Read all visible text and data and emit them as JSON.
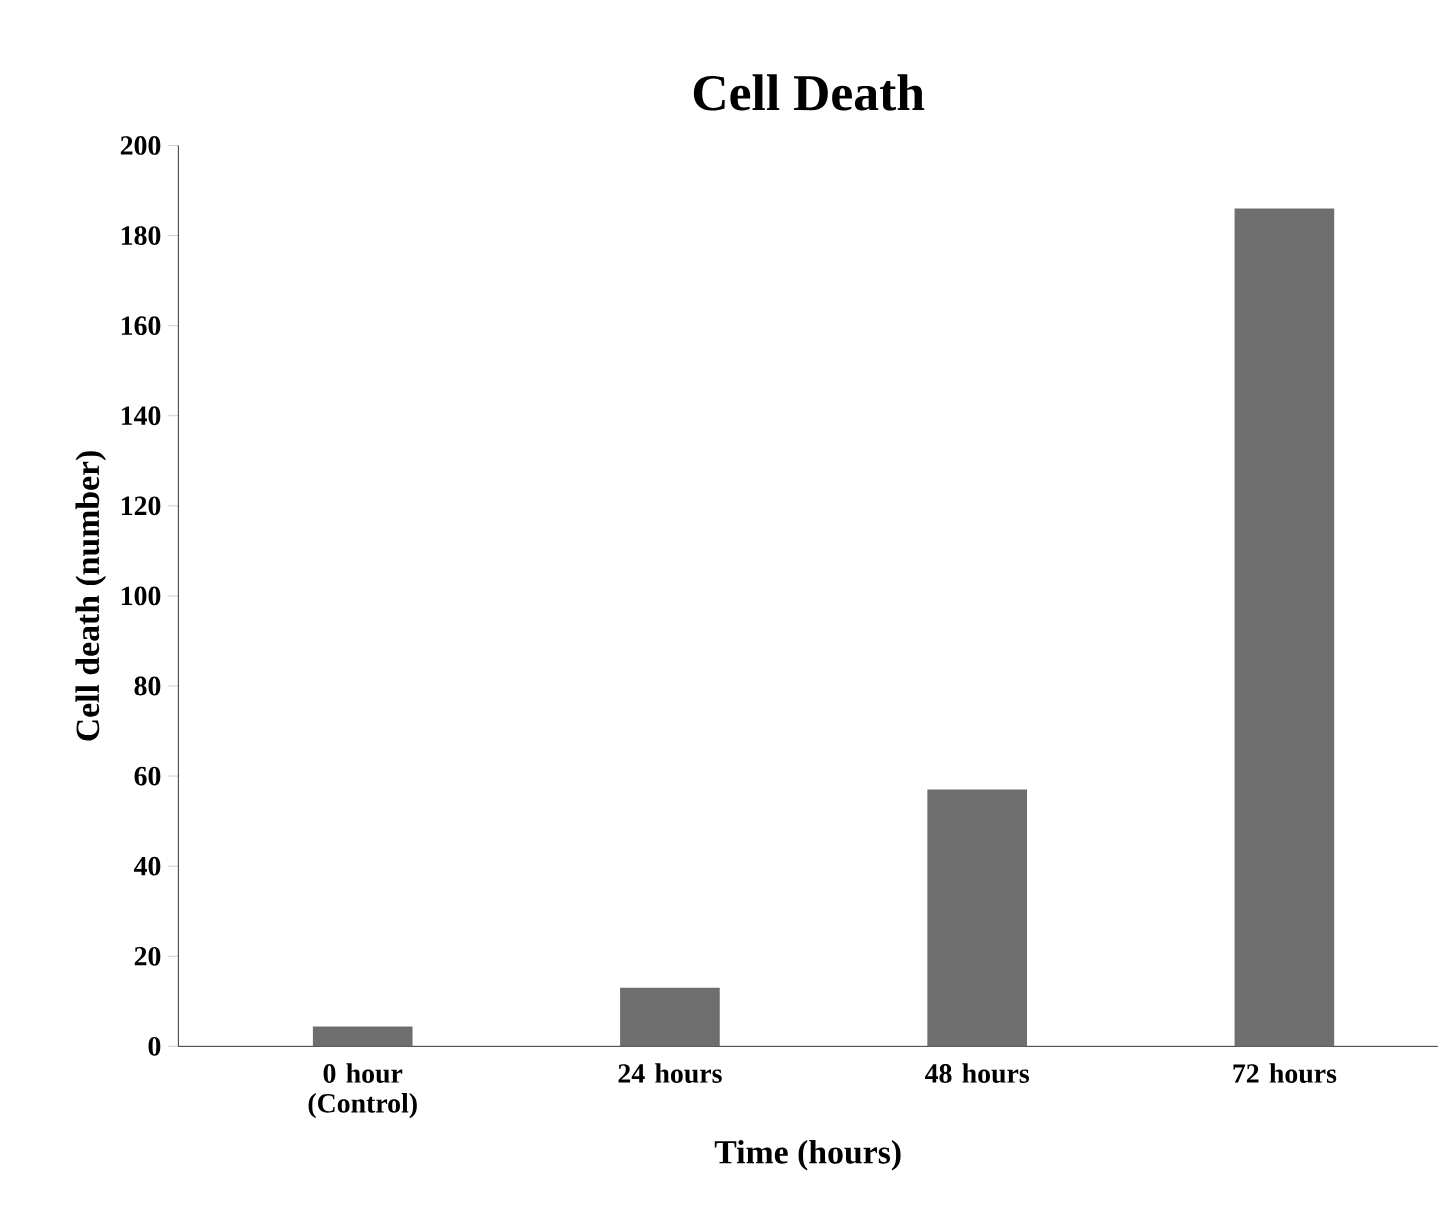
{
  "chart_data": {
    "type": "bar",
    "title": "Cell Death",
    "xlabel": "Time (hours)",
    "ylabel": "Cell death (number)",
    "categories": [
      "0 hour (Control)",
      "24 hours",
      "48 hours",
      "72 hours"
    ],
    "values": [
      4.4,
      13,
      57,
      186
    ],
    "color": "#6e6e6e",
    "ylim": [
      0,
      200
    ],
    "yticks": [
      0,
      20,
      40,
      60,
      80,
      100,
      120,
      140,
      160,
      180,
      200
    ],
    "grid": false
  }
}
